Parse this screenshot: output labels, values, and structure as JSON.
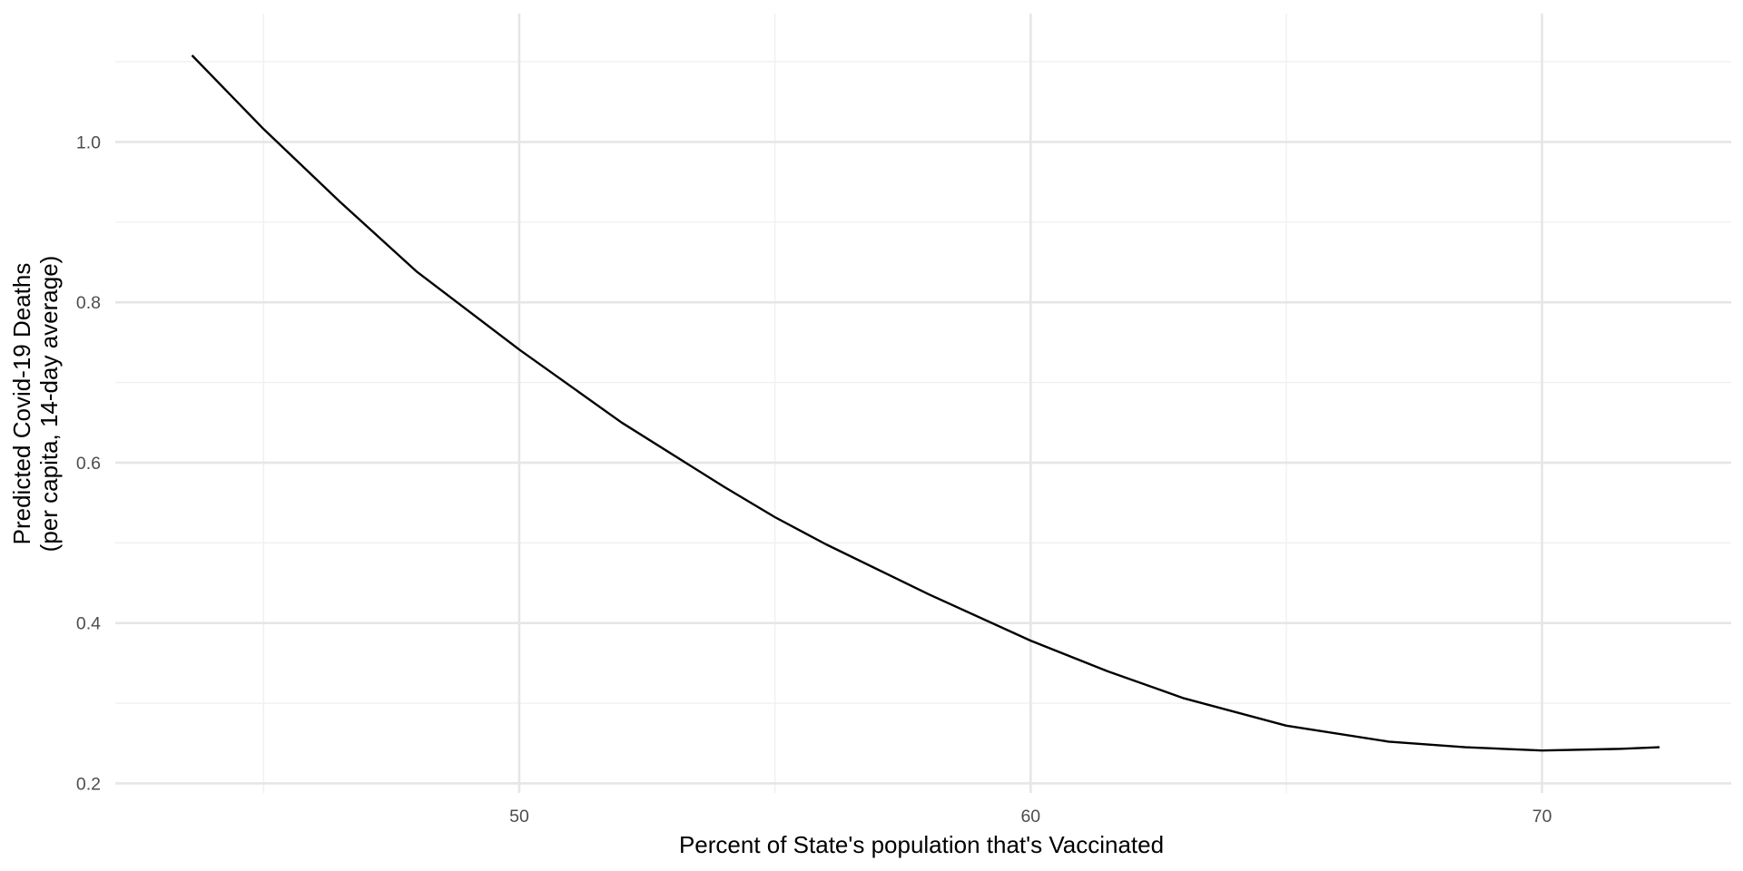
{
  "chart_data": {
    "type": "line",
    "title": "",
    "xlabel": "Percent of State's population that's Vaccinated",
    "ylabel_lines": [
      "Predicted Covid-19 Deaths",
      "(per capita, 14-day average)"
    ],
    "xlim": [
      42.1,
      73.7
    ],
    "ylim": [
      0.188,
      1.16
    ],
    "x_major_ticks": [
      50,
      60,
      70
    ],
    "x_tick_labels": [
      "50",
      "60",
      "70"
    ],
    "x_minor_ticks": [
      45,
      55,
      65
    ],
    "y_major_ticks": [
      0.2,
      0.4,
      0.6,
      0.8,
      1.0
    ],
    "y_tick_labels": [
      "0.2",
      "0.4",
      "0.6",
      "0.8",
      "1.0"
    ],
    "y_minor_ticks": [
      0.3,
      0.5,
      0.7,
      0.9,
      1.1
    ],
    "grid": true,
    "legend": "none",
    "line_color": "#000000",
    "series": [
      {
        "x": [
          43.6,
          45.0,
          46.5,
          48.0,
          50.0,
          52.0,
          54.0,
          55.0,
          56.0,
          58.0,
          60.0,
          61.5,
          63.0,
          65.0,
          67.0,
          68.5,
          70.0,
          71.5,
          72.3
        ],
        "values": [
          1.108,
          1.016,
          0.925,
          0.838,
          0.741,
          0.65,
          0.57,
          0.532,
          0.498,
          0.436,
          0.378,
          0.34,
          0.306,
          0.272,
          0.252,
          0.245,
          0.241,
          0.243,
          0.245
        ]
      }
    ]
  }
}
